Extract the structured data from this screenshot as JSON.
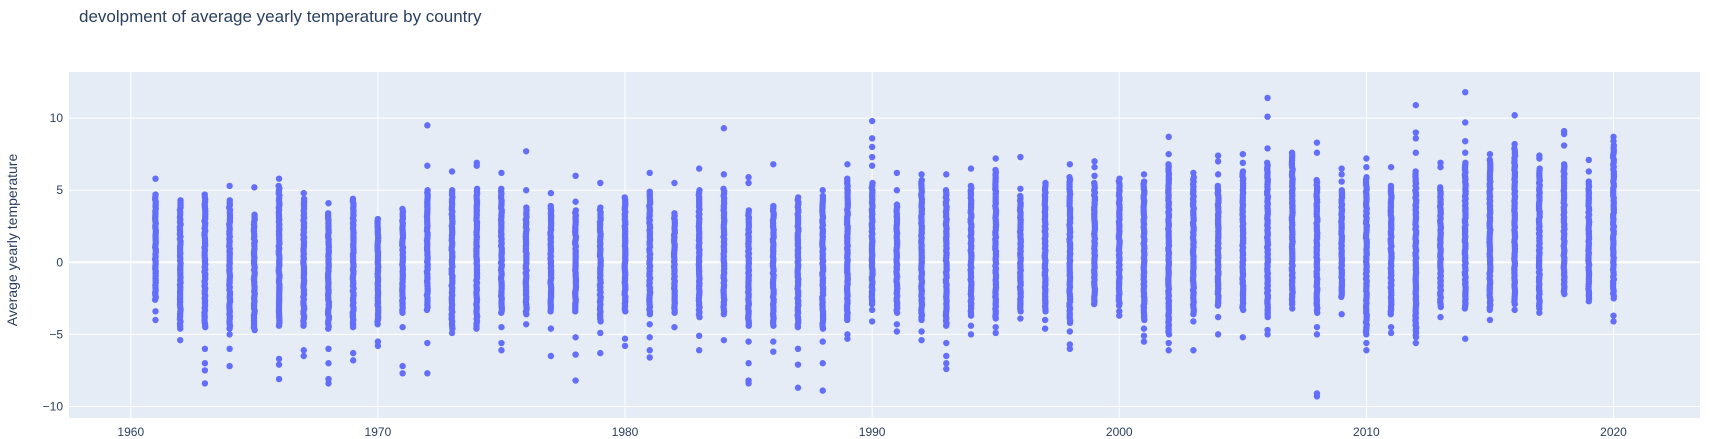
{
  "chart_data": {
    "type": "scatter",
    "title": "devolpment of average yearly temperature by country",
    "xlabel": "",
    "ylabel": "Average yearly temperature",
    "xlim": [
      1957.5,
      2023.5
    ],
    "ylim": [
      -10.8,
      13.2
    ],
    "xticks": [
      "1960",
      "1970",
      "1980",
      "1990",
      "2000",
      "2010",
      "2020"
    ],
    "yticks": [
      "−10",
      "−5",
      "0",
      "5",
      "10"
    ],
    "xtick_values": [
      1960,
      1970,
      1980,
      1990,
      2000,
      2010,
      2020
    ],
    "ytick_values": [
      -10,
      -5,
      0,
      5,
      10
    ],
    "grid": true,
    "background": "#e5ecf6",
    "marker_color": "#636efa",
    "series": [
      {
        "x_years_from": 1961,
        "x_years_to": 2020,
        "points_by_year": {
          "1961": {
            "low": -2.6,
            "high": 4.7,
            "outliers": [
              5.8,
              -3.4,
              -4.0
            ]
          },
          "1962": {
            "low": -4.6,
            "high": 4.3,
            "outliers": [
              -5.4
            ]
          },
          "1963": {
            "low": -4.5,
            "high": 4.7,
            "outliers": [
              -6.0,
              -7.0,
              -7.5,
              -8.4
            ]
          },
          "1964": {
            "low": -4.6,
            "high": 4.3,
            "outliers": [
              5.3,
              -5.0,
              -6.0,
              -7.2
            ]
          },
          "1965": {
            "low": -4.7,
            "high": 3.3,
            "outliers": [
              5.2
            ]
          },
          "1966": {
            "low": -4.4,
            "high": 5.3,
            "outliers": [
              5.8,
              -6.7,
              -7.1,
              -8.1
            ]
          },
          "1967": {
            "low": -4.4,
            "high": 4.4,
            "outliers": [
              4.8,
              -6.1,
              -6.5
            ]
          },
          "1968": {
            "low": -4.6,
            "high": 3.4,
            "outliers": [
              4.1,
              -6.0,
              -7.0,
              -8.1,
              -8.4
            ]
          },
          "1969": {
            "low": -4.5,
            "high": 4.4,
            "outliers": [
              -6.3,
              -6.8
            ]
          },
          "1970": {
            "low": -4.3,
            "high": 3.0,
            "outliers": [
              -5.5,
              -5.8
            ]
          },
          "1971": {
            "low": -3.5,
            "high": 3.7,
            "outliers": [
              -4.5,
              -7.2,
              -7.7
            ]
          },
          "1972": {
            "low": -3.3,
            "high": 5.0,
            "outliers": [
              6.7,
              9.5,
              -5.6,
              -7.7
            ]
          },
          "1973": {
            "low": -4.6,
            "high": 5.0,
            "outliers": [
              6.3,
              -4.9
            ]
          },
          "1974": {
            "low": -4.6,
            "high": 5.1,
            "outliers": [
              6.7,
              6.9
            ]
          },
          "1975": {
            "low": -3.5,
            "high": 5.1,
            "outliers": [
              6.2,
              -4.5,
              -5.6,
              -6.1
            ]
          },
          "1976": {
            "low": -3.6,
            "high": 3.8,
            "outliers": [
              5.0,
              7.7,
              -4.3
            ]
          },
          "1977": {
            "low": -3.4,
            "high": 3.9,
            "outliers": [
              4.8,
              -4.6,
              -6.5
            ]
          },
          "1978": {
            "low": -3.4,
            "high": 3.6,
            "outliers": [
              4.2,
              6.0,
              -5.2,
              -6.4,
              -8.2
            ]
          },
          "1979": {
            "low": -4.1,
            "high": 3.8,
            "outliers": [
              5.5,
              -4.9,
              -6.3
            ]
          },
          "1980": {
            "low": -3.4,
            "high": 4.5,
            "outliers": [
              -5.3,
              -5.8
            ]
          },
          "1981": {
            "low": -3.6,
            "high": 4.9,
            "outliers": [
              6.2,
              -4.3,
              -5.2,
              -6.1,
              -6.6
            ]
          },
          "1982": {
            "low": -3.5,
            "high": 3.4,
            "outliers": [
              5.5,
              -4.5
            ]
          },
          "1983": {
            "low": -3.8,
            "high": 5.0,
            "outliers": [
              6.5,
              -5.1,
              -6.1
            ]
          },
          "1984": {
            "low": -3.6,
            "high": 5.1,
            "outliers": [
              6.1,
              9.3,
              -5.4
            ]
          },
          "1985": {
            "low": -4.4,
            "high": 3.6,
            "outliers": [
              5.5,
              5.9,
              -5.5,
              -7.0,
              -8.2,
              -8.4
            ]
          },
          "1986": {
            "low": -4.4,
            "high": 3.9,
            "outliers": [
              6.8,
              -5.5,
              -6.2
            ]
          },
          "1987": {
            "low": -4.5,
            "high": 4.5,
            "outliers": [
              -6.0,
              -7.1,
              -8.7
            ]
          },
          "1988": {
            "low": -4.6,
            "high": 4.6,
            "outliers": [
              5.0,
              -5.5,
              -7.0,
              -8.9
            ]
          },
          "1989": {
            "low": -4.0,
            "high": 5.8,
            "outliers": [
              6.8,
              -5.0,
              -5.3
            ]
          },
          "1990": {
            "low": -2.9,
            "high": 5.5,
            "outliers": [
              6.7,
              7.3,
              8.0,
              8.6,
              9.8,
              -3.3,
              -4.1
            ]
          },
          "1991": {
            "low": -3.5,
            "high": 4.0,
            "outliers": [
              5.0,
              6.2,
              -4.3,
              -4.8
            ]
          },
          "1992": {
            "low": -4.0,
            "high": 5.7,
            "outliers": [
              6.1,
              -4.8,
              -5.4
            ]
          },
          "1993": {
            "low": -4.4,
            "high": 5.0,
            "outliers": [
              6.1,
              -5.6,
              -6.5,
              -7.0,
              -7.4
            ]
          },
          "1994": {
            "low": -3.7,
            "high": 5.3,
            "outliers": [
              6.5,
              -4.4,
              -5.0
            ]
          },
          "1995": {
            "low": -3.9,
            "high": 6.4,
            "outliers": [
              7.2,
              -4.5,
              -4.9
            ]
          },
          "1996": {
            "low": -3.4,
            "high": 4.6,
            "outliers": [
              5.1,
              7.3,
              -3.9
            ]
          },
          "1997": {
            "low": -3.4,
            "high": 5.5,
            "outliers": [
              -4.0,
              -4.6
            ]
          },
          "1998": {
            "low": -4.2,
            "high": 5.9,
            "outliers": [
              6.8,
              -4.8,
              -5.7,
              -6.0
            ]
          },
          "1999": {
            "low": -2.9,
            "high": 5.5,
            "outliers": [
              6.0,
              6.6,
              7.0
            ]
          },
          "2000": {
            "low": -3.0,
            "high": 5.8,
            "outliers": [
              -3.4,
              -3.7
            ]
          },
          "2001": {
            "low": -4.0,
            "high": 5.6,
            "outliers": [
              6.1,
              -4.6,
              -5.1,
              -5.5
            ]
          },
          "2002": {
            "low": -5.0,
            "high": 6.8,
            "outliers": [
              7.5,
              8.7,
              -5.6,
              -6.1
            ]
          },
          "2003": {
            "low": -3.6,
            "high": 5.9,
            "outliers": [
              6.2,
              -4.1,
              -6.1
            ]
          },
          "2004": {
            "low": -3.0,
            "high": 5.3,
            "outliers": [
              6.1,
              7.0,
              7.4,
              -3.8,
              -5.0
            ]
          },
          "2005": {
            "low": -3.3,
            "high": 6.3,
            "outliers": [
              6.9,
              7.5,
              -5.2
            ]
          },
          "2006": {
            "low": -3.8,
            "high": 6.9,
            "outliers": [
              7.9,
              10.1,
              11.4,
              -4.7,
              -5.0
            ]
          },
          "2007": {
            "low": -2.9,
            "high": 7.6,
            "outliers": [
              -3.2
            ]
          },
          "2008": {
            "low": -3.5,
            "high": 5.7,
            "outliers": [
              7.6,
              8.3,
              -4.5,
              -5.0,
              -9.1,
              -9.3
            ]
          },
          "2009": {
            "low": -2.4,
            "high": 5.0,
            "outliers": [
              5.6,
              6.1,
              6.5,
              -3.6
            ]
          },
          "2010": {
            "low": -5.0,
            "high": 5.9,
            "outliers": [
              6.6,
              7.2,
              -5.6,
              -6.1
            ]
          },
          "2011": {
            "low": -3.6,
            "high": 5.3,
            "outliers": [
              6.6,
              -4.5,
              -4.9
            ]
          },
          "2012": {
            "low": -5.2,
            "high": 6.3,
            "outliers": [
              7.6,
              8.6,
              9.0,
              10.9,
              -5.6
            ]
          },
          "2013": {
            "low": -3.1,
            "high": 5.2,
            "outliers": [
              6.6,
              6.9,
              -3.8
            ]
          },
          "2014": {
            "low": -3.2,
            "high": 6.9,
            "outliers": [
              7.6,
              8.4,
              9.7,
              11.8,
              -5.3
            ]
          },
          "2015": {
            "low": -3.3,
            "high": 7.1,
            "outliers": [
              7.5,
              -4.0
            ]
          },
          "2016": {
            "low": -2.9,
            "high": 7.9,
            "outliers": [
              8.2,
              10.2,
              -3.3
            ]
          },
          "2017": {
            "low": -3.2,
            "high": 6.5,
            "outliers": [
              7.2,
              7.4,
              -3.5
            ]
          },
          "2018": {
            "low": -2.2,
            "high": 6.8,
            "outliers": [
              8.1,
              8.9,
              9.1
            ]
          },
          "2019": {
            "low": -2.5,
            "high": 5.6,
            "outliers": [
              6.3,
              7.1,
              -2.7
            ]
          },
          "2020": {
            "low": -2.5,
            "high": 8.1,
            "outliers": [
              8.4,
              8.7,
              -3.7,
              -4.1
            ]
          }
        }
      }
    ]
  }
}
